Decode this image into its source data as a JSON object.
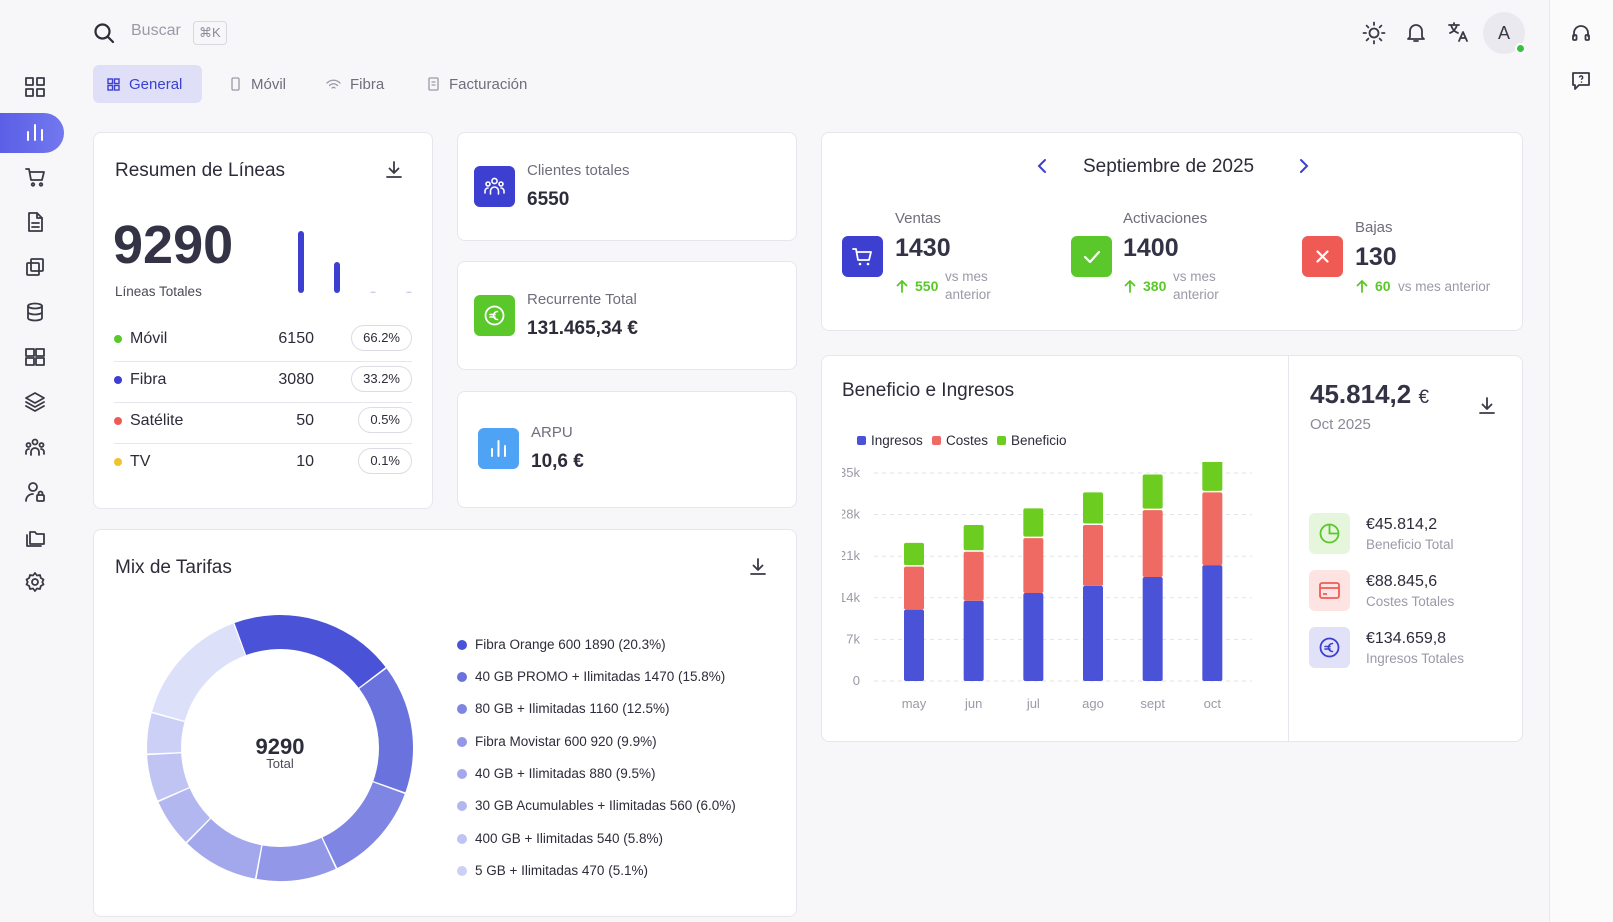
{
  "colors": {
    "accent": "#3c3fd0",
    "green": "#5ac82b",
    "red": "#ef5b54",
    "yellow": "#f2c12e",
    "blue": "#4a53d8",
    "ingresos": "#4a53d8",
    "costes": "#ef6a63",
    "beneficio": "#6ccc1f"
  },
  "search": {
    "placeholder": "Buscar",
    "shortcut": "⌘K"
  },
  "user": {
    "initial": "A"
  },
  "tabs": [
    {
      "label": "General",
      "icon": "grid-icon"
    },
    {
      "label": "Móvil",
      "icon": "phone-icon"
    },
    {
      "label": "Fibra",
      "icon": "wifi-icon"
    },
    {
      "label": "Facturación",
      "icon": "invoice-icon"
    }
  ],
  "resumen": {
    "title": "Resumen de Líneas",
    "total": "9290",
    "total_label": "Líneas Totales",
    "rows": [
      {
        "name": "Móvil",
        "value": "6150",
        "pct": "66.2%",
        "color": "#5ac82b"
      },
      {
        "name": "Fibra",
        "value": "3080",
        "pct": "33.2%",
        "color": "#3c3fd0"
      },
      {
        "name": "Satélite",
        "value": "50",
        "pct": "0.5%",
        "color": "#ef5b54"
      },
      {
        "name": "TV",
        "value": "10",
        "pct": "0.1%",
        "color": "#f2c12e"
      }
    ],
    "spark": [
      6150,
      3080,
      50,
      10
    ]
  },
  "kpis": [
    {
      "label": "Clientes totales",
      "value": "6550"
    },
    {
      "label": "Recurrente Total",
      "value": "131.465,34 €"
    },
    {
      "label": "ARPU",
      "value": "10,6 €"
    }
  ],
  "month": {
    "title": "Septiembre de 2025",
    "stats": [
      {
        "label": "Ventas",
        "value": "1430",
        "delta": "550",
        "delta_text": "vs mes anterior"
      },
      {
        "label": "Activaciones",
        "value": "1400",
        "delta": "380",
        "delta_text": "vs mes anterior"
      },
      {
        "label": "Bajas",
        "value": "130",
        "delta": "60",
        "delta_text": "vs mes anterior"
      }
    ]
  },
  "beneficio": {
    "title": "Beneficio e Ingresos",
    "total": "45.814,2",
    "currency": "€",
    "period": "Oct 2025",
    "totals": [
      {
        "value": "€45.814,2",
        "label": "Beneficio Total"
      },
      {
        "value": "€88.845,6",
        "label": "Costes Totales"
      },
      {
        "value": "€134.659,8",
        "label": "Ingresos Totales"
      }
    ]
  },
  "chart_data": {
    "type": "bar",
    "stacked": true,
    "title": "Beneficio e Ingresos",
    "categories": [
      "may",
      "jun",
      "jul",
      "ago",
      "sept",
      "oct"
    ],
    "series": [
      {
        "name": "Ingresos",
        "values": [
          12000,
          13500,
          14800,
          16000,
          17500,
          19500
        ]
      },
      {
        "name": "Costes",
        "values": [
          7500,
          8500,
          9500,
          10500,
          11500,
          12500
        ]
      },
      {
        "name": "Beneficio",
        "values": [
          4000,
          4500,
          5000,
          5500,
          6000,
          6500
        ]
      }
    ],
    "yticks": [
      "0",
      "7k",
      "14k",
      "21k",
      "28k",
      "35k"
    ],
    "ylim": [
      0,
      35000
    ],
    "legend": "top-left"
  },
  "tarifas": {
    "title": "Mix de Tarifas",
    "center_value": "9290",
    "center_label": "Total",
    "items": [
      {
        "label": "Fibra Orange 600 1890 (20.3%)",
        "value": 1890,
        "color": "#4a53d8"
      },
      {
        "label": "40 GB PROMO + Ilimitadas 1470 (15.8%)",
        "value": 1470,
        "color": "#6a72de"
      },
      {
        "label": "80 GB + Ilimitadas 1160 (12.5%)",
        "value": 1160,
        "color": "#7e85e3"
      },
      {
        "label": "Fibra Movistar 600 920 (9.9%)",
        "value": 920,
        "color": "#9298e7"
      },
      {
        "label": "40 GB + Ilimitadas 880 (9.5%)",
        "value": 880,
        "color": "#a3a8ec"
      },
      {
        "label": "30 GB Acumulables + Ilimitadas 560 (6.0%)",
        "value": 560,
        "color": "#b3b7f0"
      },
      {
        "label": "400 GB + Ilimitadas 540 (5.8%)",
        "value": 540,
        "color": "#c0c4f3"
      },
      {
        "label": "5 GB + Ilimitadas 470 (5.1%)",
        "value": 470,
        "color": "#ccd0f6"
      }
    ],
    "rest_color": "#dde0f9"
  }
}
